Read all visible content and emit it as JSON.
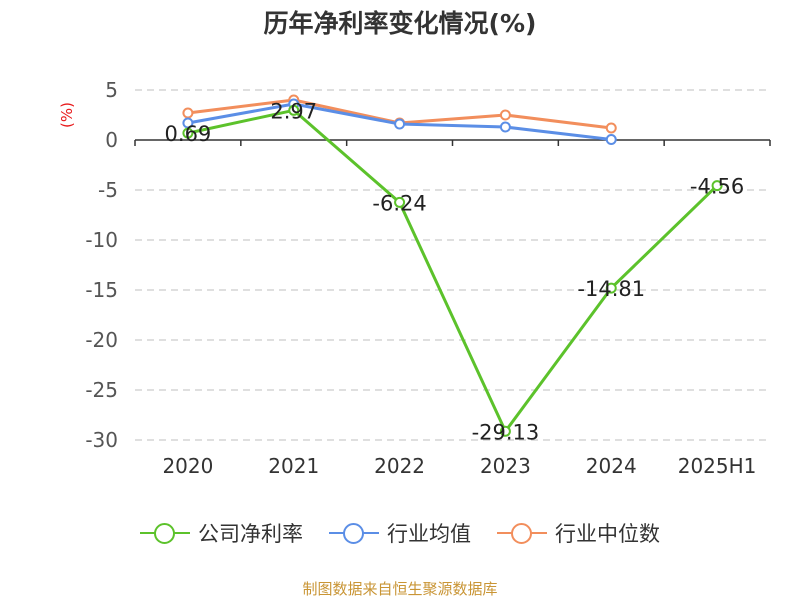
{
  "chart_data": {
    "type": "line",
    "title": "历年净利率变化情况(%)",
    "ylabel": "(%)",
    "categories": [
      "2020",
      "2021",
      "2022",
      "2023",
      "2024",
      "2025H1"
    ],
    "ylim": [
      -30,
      5
    ],
    "yticks": [
      5,
      0,
      -5,
      -10,
      -15,
      -20,
      -25,
      -30
    ],
    "grid": true,
    "legend_position": "bottom",
    "series": [
      {
        "name": "公司净利率",
        "color": "#5cc22b",
        "values": [
          0.69,
          2.97,
          -6.24,
          -29.13,
          -14.81,
          -4.56
        ],
        "labels": true
      },
      {
        "name": "行业均值",
        "color": "#5b8ee6",
        "values": [
          1.7,
          3.6,
          1.6,
          1.3,
          0.05,
          null
        ],
        "labels": false
      },
      {
        "name": "行业中位数",
        "color": "#f28e5c",
        "values": [
          2.7,
          4.0,
          1.7,
          2.5,
          1.2,
          null
        ],
        "labels": false
      }
    ]
  },
  "source": "制图数据来自恒生聚源数据库"
}
